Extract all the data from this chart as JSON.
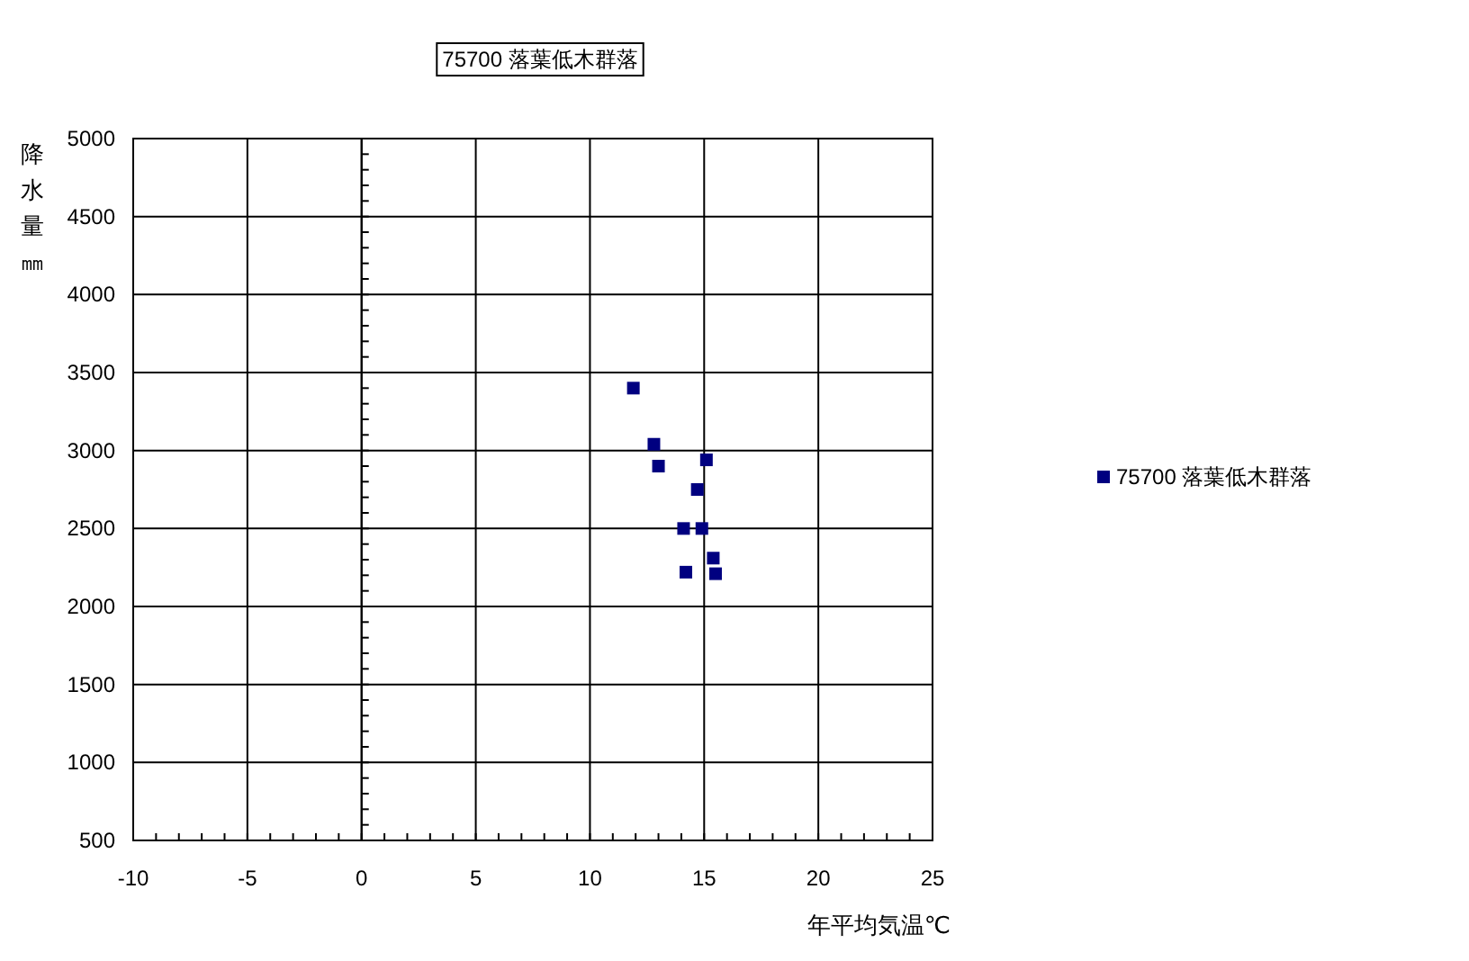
{
  "chart_data": {
    "type": "scatter",
    "title": "75700 落葉低木群落",
    "xlabel": "年平均気温℃",
    "ylabel": "降水量㎜",
    "xlim": [
      -10,
      25
    ],
    "xticks": [
      -10,
      {
        "value": -9,
        "label": null
      },
      {
        "value": -8,
        "label": null
      },
      {
        "value": -7,
        "label": null
      },
      {
        "value": -6,
        "label": null
      },
      -5,
      {
        "value": -4,
        "label": null
      },
      {
        "value": -3,
        "label": null
      },
      {
        "value": -2,
        "label": null
      },
      {
        "value": -1,
        "label": null
      },
      0,
      {
        "value": 1,
        "label": null
      },
      {
        "value": 2,
        "label": null
      },
      {
        "value": 3,
        "label": null
      },
      {
        "value": 4,
        "label": null
      },
      5,
      {
        "value": 6,
        "label": null
      },
      {
        "value": 7,
        "label": null
      },
      {
        "value": 8,
        "label": null
      },
      {
        "value": 9,
        "label": null
      },
      10,
      {
        "value": 11,
        "label": null
      },
      {
        "value": 12,
        "label": null
      },
      {
        "value": 13,
        "label": null
      },
      {
        "value": 14,
        "label": null
      },
      15,
      {
        "value": 16,
        "label": null
      },
      {
        "value": 17,
        "label": null
      },
      {
        "value": 18,
        "label": null
      },
      {
        "value": 19,
        "label": null
      },
      20,
      {
        "value": 21,
        "label": null
      },
      {
        "value": 22,
        "label": null
      },
      {
        "value": 23,
        "label": null
      },
      {
        "value": 24,
        "label": null
      },
      25
    ],
    "ylim": [
      500,
      5000
    ],
    "yticks": [
      500,
      {
        "value": 600,
        "label": null
      },
      {
        "value": 700,
        "label": null
      },
      {
        "value": 800,
        "label": null
      },
      {
        "value": 900,
        "label": null
      },
      1000,
      {
        "value": 1100,
        "label": null
      },
      {
        "value": 1200,
        "label": null
      },
      {
        "value": 1300,
        "label": null
      },
      {
        "value": 1400,
        "label": null
      },
      1500,
      {
        "value": 1600,
        "label": null
      },
      {
        "value": 1700,
        "label": null
      },
      {
        "value": 1800,
        "label": null
      },
      {
        "value": 1900,
        "label": null
      },
      2000,
      {
        "value": 2100,
        "label": null
      },
      {
        "value": 2200,
        "label": null
      },
      {
        "value": 2300,
        "label": null
      },
      {
        "value": 2400,
        "label": null
      },
      2500,
      {
        "value": 2600,
        "label": null
      },
      {
        "value": 2700,
        "label": null
      },
      {
        "value": 2800,
        "label": null
      },
      {
        "value": 2900,
        "label": null
      },
      3000,
      {
        "value": 3100,
        "label": null
      },
      {
        "value": 3200,
        "label": null
      },
      {
        "value": 3300,
        "label": null
      },
      {
        "value": 3400,
        "label": null
      },
      3500,
      {
        "value": 3600,
        "label": null
      },
      {
        "value": 3700,
        "label": null
      },
      {
        "value": 3800,
        "label": null
      },
      {
        "value": 3900,
        "label": null
      },
      4000,
      {
        "value": 4100,
        "label": null
      },
      {
        "value": 4200,
        "label": null
      },
      {
        "value": 4300,
        "label": null
      },
      {
        "value": 4400,
        "label": null
      },
      4500,
      {
        "value": 4600,
        "label": null
      },
      {
        "value": 4700,
        "label": null
      },
      {
        "value": 4800,
        "label": null
      },
      {
        "value": 4900,
        "label": null
      },
      5000
    ],
    "grid": true,
    "legend": "right",
    "marker": "square",
    "series": [
      {
        "name": "75700 落葉低木群落",
        "color": "#000080",
        "x": [
          11.9,
          12.8,
          13.0,
          15.1,
          14.7,
          14.1,
          14.9,
          15.4,
          14.2,
          15.5
        ],
        "values": [
          3400,
          3040,
          2900,
          2940,
          2750,
          2500,
          2500,
          2310,
          2220,
          2210
        ]
      }
    ]
  }
}
